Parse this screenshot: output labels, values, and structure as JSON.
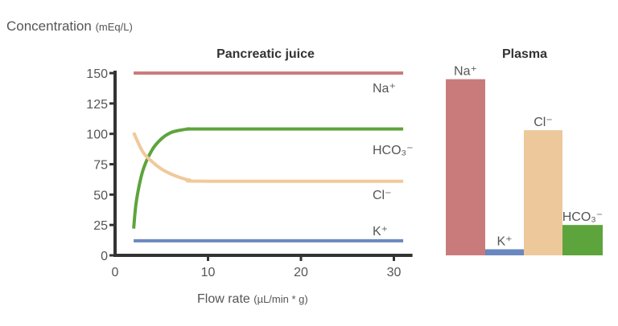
{
  "chart_data": [
    {
      "type": "line",
      "title": "Pancreatic juice",
      "ylabel": "Concentration",
      "ylabel_unit": "(mEq/L)",
      "xlabel": "Flow rate",
      "xlabel_unit": "(µL/min * g)",
      "xlim": [
        0,
        31
      ],
      "ylim": [
        0,
        150
      ],
      "xticks": [
        0,
        10,
        20,
        30
      ],
      "yticks": [
        0,
        25,
        50,
        75,
        100,
        125,
        150
      ],
      "grid": false,
      "series": [
        {
          "name": "Na⁺",
          "color": "#c97b7b",
          "points": [
            [
              2,
              150
            ],
            [
              31,
              150
            ]
          ]
        },
        {
          "name": "HCO₃⁻",
          "color": "#5ea43c",
          "points": [
            [
              2,
              22
            ],
            [
              2.3,
              45
            ],
            [
              3,
              70
            ],
            [
              4,
              87
            ],
            [
              5,
              96
            ],
            [
              6,
              101
            ],
            [
              7,
              103
            ],
            [
              8,
              104
            ],
            [
              10,
              104
            ],
            [
              31,
              104
            ]
          ]
        },
        {
          "name": "Cl⁻",
          "color": "#f0c99b",
          "points": [
            [
              2,
              101
            ],
            [
              3,
              85
            ],
            [
              4,
              77
            ],
            [
              5,
              71
            ],
            [
              6,
              67
            ],
            [
              7,
              64
            ],
            [
              8,
              62
            ],
            [
              10,
              61
            ],
            [
              31,
              61
            ]
          ]
        },
        {
          "name": "K⁺",
          "color": "#6b87bf",
          "points": [
            [
              2,
              12
            ],
            [
              31,
              12
            ]
          ]
        }
      ]
    },
    {
      "type": "bar",
      "title": "Plasma",
      "categories": [
        "Na⁺",
        "K⁺",
        "Cl⁻",
        "HCO₃⁻"
      ],
      "values": [
        145,
        5,
        103,
        25
      ],
      "colors": [
        "#c97b7b",
        "#6b87bf",
        "#ecc89b",
        "#5ea43c"
      ],
      "ylim": [
        0,
        150
      ]
    }
  ]
}
